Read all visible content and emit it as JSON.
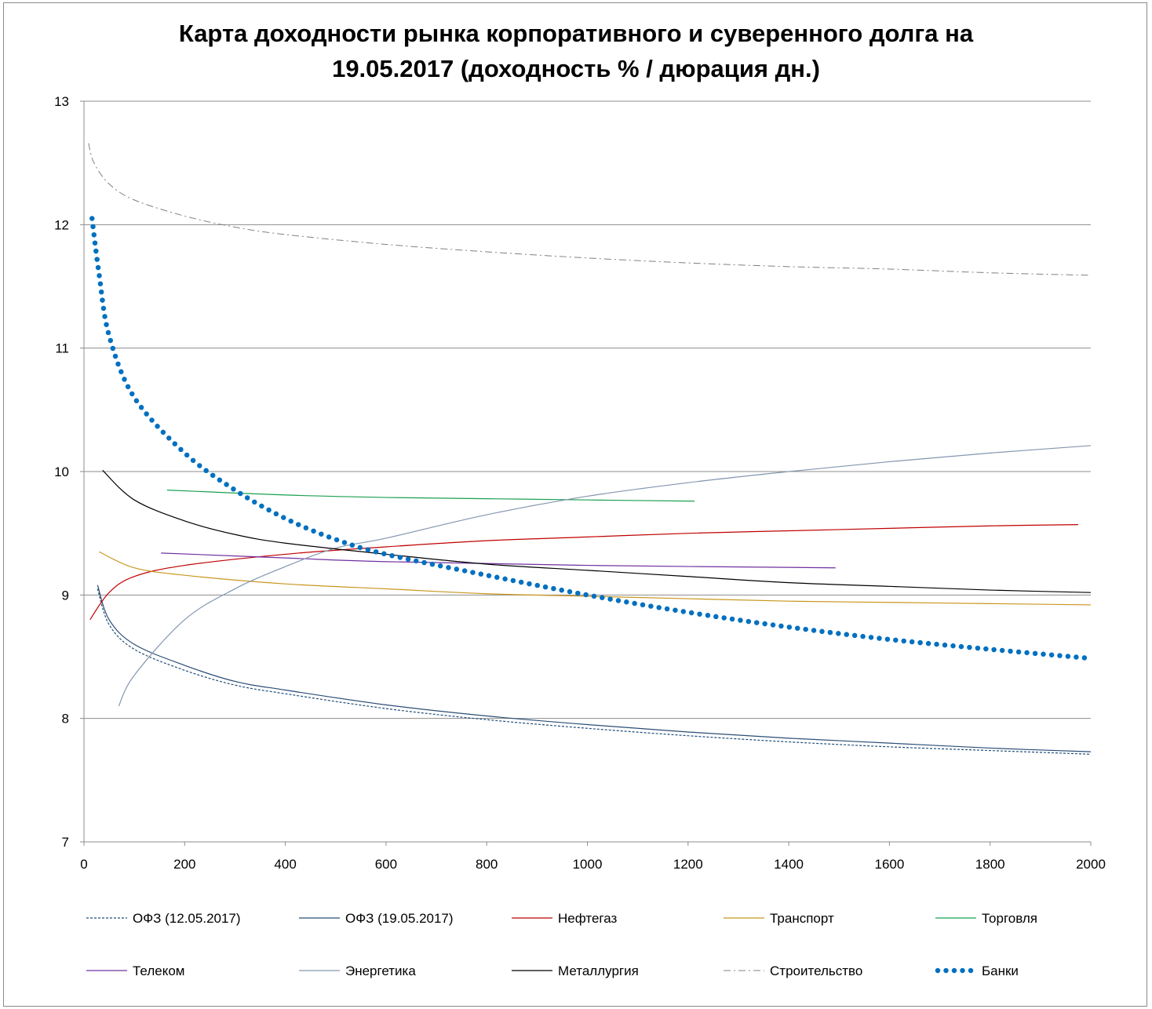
{
  "chart_data": {
    "type": "line",
    "title_line1": "Карта доходности рынка корпоративного и суверенного долга на",
    "title_line2": "19.05.2017 (доходность % / дюрация дн.)",
    "xlabel": "",
    "ylabel": "",
    "xlim": [
      0,
      2000
    ],
    "ylim": [
      7,
      13
    ],
    "xticks": [
      0,
      200,
      400,
      600,
      800,
      1000,
      1200,
      1400,
      1600,
      1800,
      2000
    ],
    "yticks": [
      7,
      8,
      9,
      10,
      11,
      12,
      13
    ],
    "grid": "horizontal",
    "legend_position": "bottom",
    "series": [
      {
        "name": "ОФЗ (12.05.2017)",
        "color": "#1f4e79",
        "style": "dotted",
        "points": [
          [
            27,
            9.05
          ],
          [
            50,
            8.76
          ],
          [
            100,
            8.56
          ],
          [
            200,
            8.39
          ],
          [
            300,
            8.27
          ],
          [
            400,
            8.2
          ],
          [
            600,
            8.08
          ],
          [
            800,
            7.99
          ],
          [
            1000,
            7.92
          ],
          [
            1200,
            7.86
          ],
          [
            1400,
            7.81
          ],
          [
            1600,
            7.77
          ],
          [
            1800,
            7.74
          ],
          [
            2000,
            7.71
          ]
        ]
      },
      {
        "name": "ОФЗ (19.05.2017)",
        "color": "#2a4d75",
        "style": "solid",
        "points": [
          [
            27,
            9.08
          ],
          [
            50,
            8.8
          ],
          [
            100,
            8.6
          ],
          [
            200,
            8.43
          ],
          [
            300,
            8.3
          ],
          [
            400,
            8.23
          ],
          [
            600,
            8.11
          ],
          [
            800,
            8.02
          ],
          [
            1000,
            7.95
          ],
          [
            1200,
            7.89
          ],
          [
            1400,
            7.84
          ],
          [
            1600,
            7.8
          ],
          [
            1800,
            7.76
          ],
          [
            2000,
            7.73
          ]
        ]
      },
      {
        "name": "Нефтегаз",
        "color": "#c00000",
        "style": "solid",
        "points": [
          [
            12,
            8.8
          ],
          [
            50,
            9.02
          ],
          [
            100,
            9.15
          ],
          [
            200,
            9.24
          ],
          [
            400,
            9.33
          ],
          [
            600,
            9.39
          ],
          [
            800,
            9.44
          ],
          [
            1000,
            9.47
          ],
          [
            1200,
            9.5
          ],
          [
            1400,
            9.52
          ],
          [
            1600,
            9.54
          ],
          [
            1800,
            9.56
          ],
          [
            1975,
            9.57
          ]
        ]
      },
      {
        "name": "Транспорт",
        "color": "#c8961e",
        "style": "solid",
        "points": [
          [
            30,
            9.35
          ],
          [
            100,
            9.22
          ],
          [
            200,
            9.16
          ],
          [
            400,
            9.09
          ],
          [
            600,
            9.05
          ],
          [
            800,
            9.01
          ],
          [
            1000,
            8.99
          ],
          [
            1200,
            8.97
          ],
          [
            1400,
            8.95
          ],
          [
            1600,
            8.94
          ],
          [
            1800,
            8.93
          ],
          [
            2000,
            8.92
          ]
        ]
      },
      {
        "name": "Торговля",
        "color": "#1aa050",
        "style": "solid",
        "points": [
          [
            165,
            9.85
          ],
          [
            400,
            9.81
          ],
          [
            600,
            9.79
          ],
          [
            800,
            9.78
          ],
          [
            1000,
            9.77
          ],
          [
            1213,
            9.76
          ]
        ]
      },
      {
        "name": "Телеком",
        "color": "#7030a0",
        "style": "solid",
        "points": [
          [
            153,
            9.34
          ],
          [
            400,
            9.3
          ],
          [
            600,
            9.27
          ],
          [
            1000,
            9.24
          ],
          [
            1493,
            9.22
          ]
        ]
      },
      {
        "name": "Энергетика",
        "color": "#8496b0",
        "style": "solid",
        "points": [
          [
            69,
            8.1
          ],
          [
            100,
            8.35
          ],
          [
            200,
            8.8
          ],
          [
            300,
            9.05
          ],
          [
            400,
            9.23
          ],
          [
            500,
            9.38
          ],
          [
            600,
            9.46
          ],
          [
            800,
            9.65
          ],
          [
            1000,
            9.8
          ],
          [
            1200,
            9.91
          ],
          [
            1400,
            10.0
          ],
          [
            1600,
            10.08
          ],
          [
            1800,
            10.15
          ],
          [
            2000,
            10.21
          ]
        ]
      },
      {
        "name": "Металлургия",
        "color": "#000000",
        "style": "solid",
        "points": [
          [
            37,
            10.01
          ],
          [
            100,
            9.77
          ],
          [
            200,
            9.6
          ],
          [
            300,
            9.49
          ],
          [
            400,
            9.42
          ],
          [
            600,
            9.33
          ],
          [
            800,
            9.25
          ],
          [
            1000,
            9.2
          ],
          [
            1200,
            9.15
          ],
          [
            1400,
            9.1
          ],
          [
            1600,
            9.07
          ],
          [
            1800,
            9.04
          ],
          [
            2000,
            9.02
          ]
        ]
      },
      {
        "name": "Строительство",
        "color": "#808080",
        "style": "dashdot",
        "points": [
          [
            9,
            12.66
          ],
          [
            20,
            12.5
          ],
          [
            50,
            12.33
          ],
          [
            100,
            12.2
          ],
          [
            200,
            12.07
          ],
          [
            300,
            11.98
          ],
          [
            400,
            11.92
          ],
          [
            600,
            11.84
          ],
          [
            800,
            11.78
          ],
          [
            1000,
            11.73
          ],
          [
            1200,
            11.69
          ],
          [
            1400,
            11.66
          ],
          [
            1600,
            11.64
          ],
          [
            1800,
            11.61
          ],
          [
            2000,
            11.59
          ]
        ]
      },
      {
        "name": "Банки",
        "color": "#0070c0",
        "style": "roundDots",
        "points": [
          [
            16,
            12.05
          ],
          [
            30,
            11.6
          ],
          [
            50,
            11.1
          ],
          [
            100,
            10.6
          ],
          [
            200,
            10.15
          ],
          [
            300,
            9.85
          ],
          [
            400,
            9.62
          ],
          [
            500,
            9.45
          ],
          [
            600,
            9.33
          ],
          [
            800,
            9.16
          ],
          [
            1000,
            9.0
          ],
          [
            1200,
            8.86
          ],
          [
            1400,
            8.74
          ],
          [
            1600,
            8.64
          ],
          [
            1800,
            8.56
          ],
          [
            1990,
            8.49
          ]
        ]
      }
    ]
  }
}
